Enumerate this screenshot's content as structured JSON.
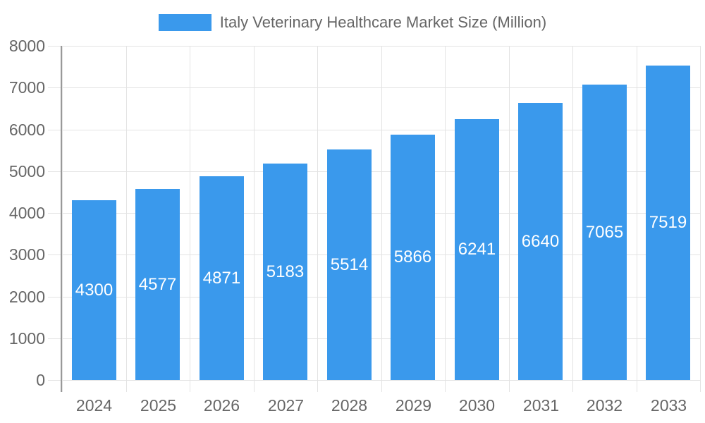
{
  "chart_data": {
    "type": "bar",
    "title": "Italy Veterinary Healthcare Market Size (Million)",
    "categories": [
      "2024",
      "2025",
      "2026",
      "2027",
      "2028",
      "2029",
      "2030",
      "2031",
      "2032",
      "2033"
    ],
    "values": [
      4300,
      4577,
      4871,
      5183,
      5514,
      5866,
      6241,
      6640,
      7065,
      7519
    ],
    "xlabel": "",
    "ylabel": "",
    "ylim": [
      0,
      8000
    ],
    "ytick_step": 1000,
    "ytick_labels": [
      "0",
      "1000",
      "2000",
      "3000",
      "4000",
      "5000",
      "6000",
      "7000",
      "8000"
    ],
    "grid": true,
    "legend_position": "top",
    "value_labels": "inside-center",
    "colors": {
      "bar": "#3A99EC",
      "value_label": "#FFFFFF",
      "axis_text": "#666666",
      "axis_line": "#999999",
      "gridline": "#E3E3E3",
      "background": "#FFFFFF"
    }
  }
}
